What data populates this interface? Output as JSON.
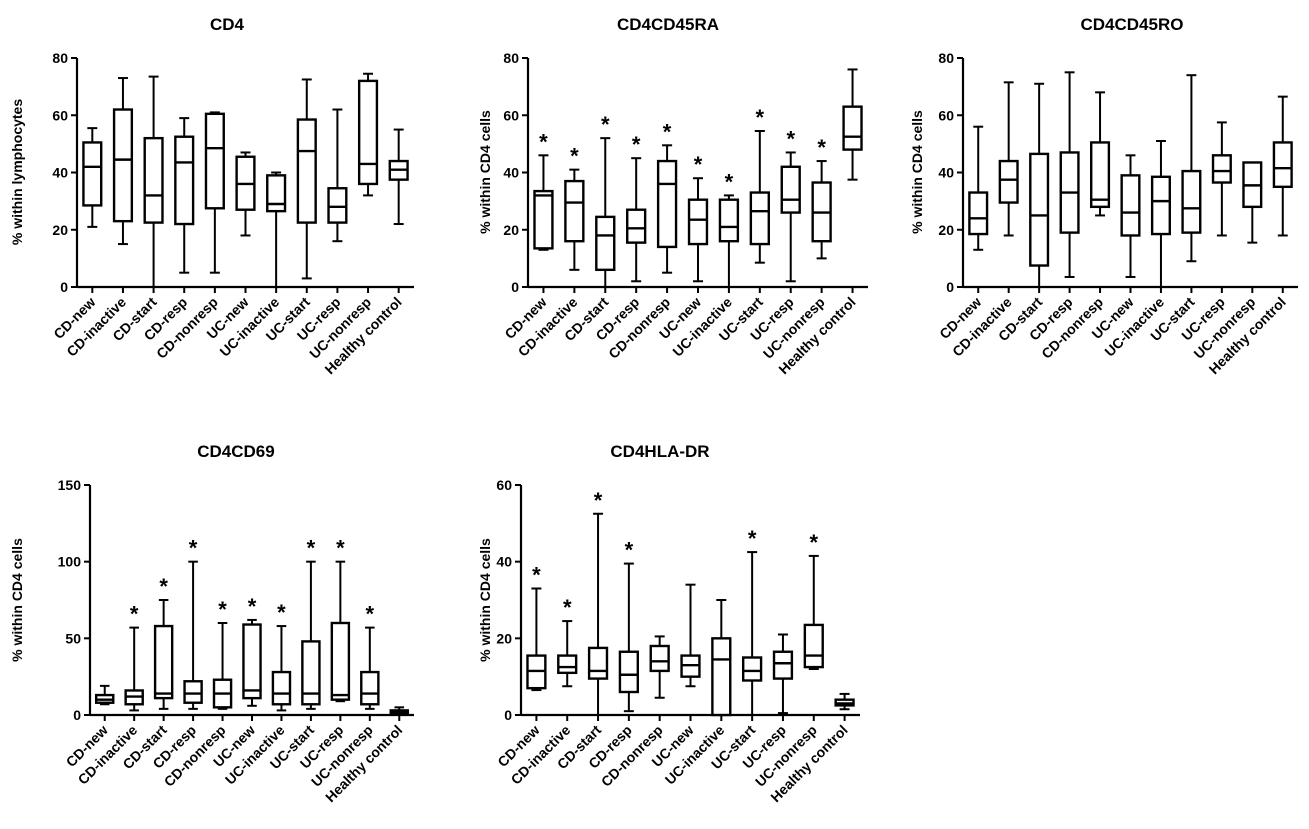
{
  "categories": [
    "CD-new",
    "CD-inactive",
    "CD-start",
    "CD-resp",
    "CD-nonresp",
    "UC-new",
    "UC-inactive",
    "UC-start",
    "UC-resp",
    "UC-nonresp",
    "Healthy control"
  ],
  "significance_symbol": "*",
  "chart_data": [
    {
      "type": "box",
      "title": "CD4",
      "ylabel": "% within lymphocytes",
      "ylim": [
        0,
        80
      ],
      "yticks": [
        0,
        20,
        40,
        60,
        80
      ],
      "categories": [
        "CD-new",
        "CD-inactive",
        "CD-start",
        "CD-resp",
        "CD-nonresp",
        "UC-new",
        "UC-inactive",
        "UC-start",
        "UC-resp",
        "UC-nonresp",
        "Healthy control"
      ],
      "boxes": [
        {
          "min": 21,
          "q1": 28.5,
          "median": 42,
          "q3": 50.5,
          "max": 55.5,
          "significant": false
        },
        {
          "min": 15,
          "q1": 23,
          "median": 44.5,
          "q3": 62,
          "max": 73,
          "significant": false
        },
        {
          "min": 0,
          "q1": 22.5,
          "median": 32,
          "q3": 52,
          "max": 73.5,
          "significant": false
        },
        {
          "min": 5,
          "q1": 22,
          "median": 43.5,
          "q3": 52.5,
          "max": 59,
          "significant": false
        },
        {
          "min": 5,
          "q1": 27.5,
          "median": 48.5,
          "q3": 60.5,
          "max": 61,
          "significant": false
        },
        {
          "min": 18,
          "q1": 27,
          "median": 36,
          "q3": 45.5,
          "max": 47,
          "significant": false
        },
        {
          "min": 0,
          "q1": 26.5,
          "median": 29,
          "q3": 39,
          "max": 40,
          "significant": false
        },
        {
          "min": 3,
          "q1": 22.5,
          "median": 47.5,
          "q3": 58.5,
          "max": 72.5,
          "significant": false
        },
        {
          "min": 16,
          "q1": 22.5,
          "median": 28,
          "q3": 34.5,
          "max": 62,
          "significant": false
        },
        {
          "min": 32,
          "q1": 36,
          "median": 43,
          "q3": 72,
          "max": 74.5,
          "significant": false
        },
        {
          "min": 22,
          "q1": 37.5,
          "median": 41,
          "q3": 44,
          "max": 55,
          "significant": false
        }
      ]
    },
    {
      "type": "box",
      "title": "CD4CD45RA",
      "ylabel": "% within CD4 cells",
      "ylim": [
        0,
        80
      ],
      "yticks": [
        0,
        20,
        40,
        60,
        80
      ],
      "categories": [
        "CD-new",
        "CD-inactive",
        "CD-start",
        "CD-resp",
        "CD-nonresp",
        "UC-new",
        "UC-inactive",
        "UC-start",
        "UC-resp",
        "UC-nonresp",
        "Healthy control"
      ],
      "boxes": [
        {
          "min": 13,
          "q1": 13.5,
          "median": 32,
          "q3": 33.5,
          "max": 46,
          "significant": true
        },
        {
          "min": 6,
          "q1": 16,
          "median": 29.5,
          "q3": 37,
          "max": 41,
          "significant": true
        },
        {
          "min": 0,
          "q1": 6,
          "median": 18,
          "q3": 24.5,
          "max": 52,
          "significant": true
        },
        {
          "min": 2,
          "q1": 15.5,
          "median": 20.5,
          "q3": 27,
          "max": 45,
          "significant": true
        },
        {
          "min": 5,
          "q1": 14,
          "median": 36,
          "q3": 44,
          "max": 49.5,
          "significant": true
        },
        {
          "min": 2,
          "q1": 15,
          "median": 23.5,
          "q3": 30.5,
          "max": 38,
          "significant": true
        },
        {
          "min": 0,
          "q1": 16,
          "median": 21,
          "q3": 30.5,
          "max": 32,
          "significant": true
        },
        {
          "min": 8.5,
          "q1": 15,
          "median": 26.5,
          "q3": 33,
          "max": 54.5,
          "significant": true
        },
        {
          "min": 2,
          "q1": 26,
          "median": 30.5,
          "q3": 42,
          "max": 47,
          "significant": true
        },
        {
          "min": 10,
          "q1": 16,
          "median": 26,
          "q3": 36.5,
          "max": 44,
          "significant": true
        },
        {
          "min": 37.5,
          "q1": 48,
          "median": 52.5,
          "q3": 63,
          "max": 76,
          "significant": false
        }
      ]
    },
    {
      "type": "box",
      "title": "CD4CD45RO",
      "ylabel": "% within CD4 cells",
      "ylim": [
        0,
        80
      ],
      "yticks": [
        0,
        20,
        40,
        60,
        80
      ],
      "categories": [
        "CD-new",
        "CD-inactive",
        "CD-start",
        "CD-resp",
        "CD-nonresp",
        "UC-new",
        "UC-inactive",
        "UC-start",
        "UC-resp",
        "UC-nonresp",
        "Healthy control"
      ],
      "boxes": [
        {
          "min": 13,
          "q1": 18.5,
          "median": 24,
          "q3": 33,
          "max": 56,
          "significant": false
        },
        {
          "min": 18,
          "q1": 29.5,
          "median": 37.5,
          "q3": 44,
          "max": 71.5,
          "significant": false
        },
        {
          "min": 0,
          "q1": 7.5,
          "median": 25,
          "q3": 46.5,
          "max": 71,
          "significant": false
        },
        {
          "min": 3.5,
          "q1": 19,
          "median": 33,
          "q3": 47,
          "max": 75,
          "significant": false
        },
        {
          "min": 25,
          "q1": 28,
          "median": 30.5,
          "q3": 50.5,
          "max": 68,
          "significant": false
        },
        {
          "min": 3.5,
          "q1": 18,
          "median": 26,
          "q3": 39,
          "max": 46,
          "significant": false
        },
        {
          "min": 0,
          "q1": 18.5,
          "median": 30,
          "q3": 38.5,
          "max": 51,
          "significant": false
        },
        {
          "min": 9,
          "q1": 19,
          "median": 27.5,
          "q3": 40.5,
          "max": 74,
          "significant": false
        },
        {
          "min": 18,
          "q1": 36.5,
          "median": 40.5,
          "q3": 46,
          "max": 57.5,
          "significant": false
        },
        {
          "min": 15.5,
          "q1": 28,
          "median": 35.5,
          "q3": 43.5,
          "max": 43.5,
          "significant": false
        },
        {
          "min": 18,
          "q1": 35,
          "median": 41.5,
          "q3": 50.5,
          "max": 66.5,
          "significant": false
        }
      ]
    },
    {
      "type": "box",
      "title": "CD4CD69",
      "ylabel": "% within CD4 cells",
      "ylim": [
        0,
        150
      ],
      "yticks": [
        0,
        50,
        100,
        150
      ],
      "categories": [
        "CD-new",
        "CD-inactive",
        "CD-start",
        "CD-resp",
        "CD-nonresp",
        "UC-new",
        "UC-inactive",
        "UC-start",
        "UC-resp",
        "UC-nonresp",
        "Healthy control"
      ],
      "boxes": [
        {
          "min": 7,
          "q1": 8,
          "median": 10,
          "q3": 13,
          "max": 19,
          "significant": false
        },
        {
          "min": 3,
          "q1": 7,
          "median": 12,
          "q3": 16,
          "max": 57,
          "significant": true
        },
        {
          "min": 4,
          "q1": 11,
          "median": 14,
          "q3": 58,
          "max": 75,
          "significant": true
        },
        {
          "min": 4,
          "q1": 8,
          "median": 14,
          "q3": 22,
          "max": 100,
          "significant": true
        },
        {
          "min": 4,
          "q1": 5,
          "median": 14,
          "q3": 23,
          "max": 60,
          "significant": true
        },
        {
          "min": 6,
          "q1": 11,
          "median": 16,
          "q3": 59,
          "max": 62,
          "significant": true
        },
        {
          "min": 3,
          "q1": 7,
          "median": 14,
          "q3": 28,
          "max": 58,
          "significant": true
        },
        {
          "min": 4,
          "q1": 7,
          "median": 14,
          "q3": 48,
          "max": 100,
          "significant": true
        },
        {
          "min": 9,
          "q1": 10,
          "median": 13,
          "q3": 60,
          "max": 100,
          "significant": true
        },
        {
          "min": 4,
          "q1": 7,
          "median": 14,
          "q3": 28,
          "max": 57,
          "significant": true
        },
        {
          "min": 0.5,
          "q1": 1,
          "median": 2,
          "q3": 3,
          "max": 5,
          "significant": false
        }
      ]
    },
    {
      "type": "box",
      "title": "CD4HLA-DR",
      "ylabel": "% within CD4 cells",
      "ylim": [
        0,
        60
      ],
      "yticks": [
        0,
        20,
        40,
        60
      ],
      "categories": [
        "CD-new",
        "CD-inactive",
        "CD-start",
        "CD-resp",
        "CD-nonresp",
        "UC-new",
        "UC-inactive",
        "UC-start",
        "UC-resp",
        "UC-nonresp",
        "Healthy control"
      ],
      "boxes": [
        {
          "min": 6.5,
          "q1": 7,
          "median": 11.5,
          "q3": 15.5,
          "max": 33,
          "significant": true
        },
        {
          "min": 7.5,
          "q1": 11,
          "median": 12.5,
          "q3": 15.5,
          "max": 24.5,
          "significant": true
        },
        {
          "min": 0,
          "q1": 9.5,
          "median": 11.5,
          "q3": 17.5,
          "max": 52.5,
          "significant": true
        },
        {
          "min": 1,
          "q1": 6,
          "median": 10.5,
          "q3": 16.5,
          "max": 39.5,
          "significant": true
        },
        {
          "min": 4.5,
          "q1": 11.5,
          "median": 14,
          "q3": 18,
          "max": 20.5,
          "significant": false
        },
        {
          "min": 7.5,
          "q1": 10,
          "median": 13,
          "q3": 15.5,
          "max": 34,
          "significant": false
        },
        {
          "min": 0,
          "q1": 0,
          "median": 14.5,
          "q3": 20,
          "max": 30,
          "significant": false
        },
        {
          "min": 0,
          "q1": 9,
          "median": 11.5,
          "q3": 15,
          "max": 42.5,
          "significant": true
        },
        {
          "min": 0.5,
          "q1": 9.5,
          "median": 13.5,
          "q3": 16.5,
          "max": 21,
          "significant": false
        },
        {
          "min": 12,
          "q1": 12.5,
          "median": 15.5,
          "q3": 23.5,
          "max": 41.5,
          "significant": true
        },
        {
          "min": 1.5,
          "q1": 2.5,
          "median": 3,
          "q3": 4,
          "max": 5.5,
          "significant": false
        }
      ]
    }
  ]
}
